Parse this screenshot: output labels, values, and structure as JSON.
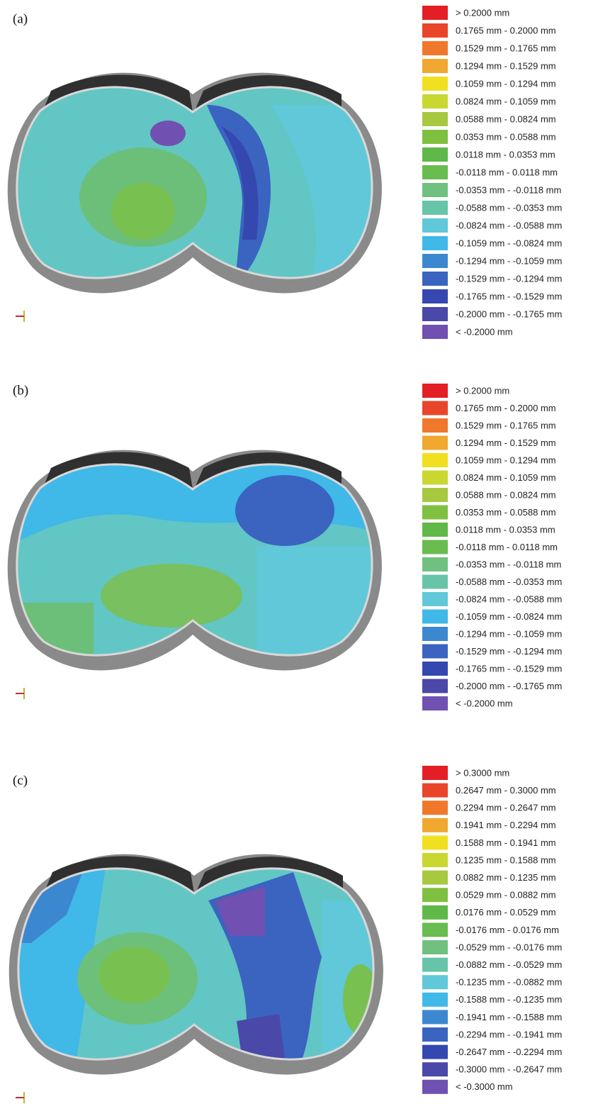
{
  "panels": [
    {
      "label": "(a)",
      "legend": [
        {
          "label": "> 0.2000 mm",
          "color": "#e31e24"
        },
        {
          "label": "0.1765 mm -  0.2000 mm",
          "color": "#e8452a"
        },
        {
          "label": "0.1529 mm -  0.1765 mm",
          "color": "#f0782a"
        },
        {
          "label": "0.1294 mm -  0.1529 mm",
          "color": "#f0a830"
        },
        {
          "label": "0.1059 mm -  0.1294 mm",
          "color": "#f0e020"
        },
        {
          "label": "0.0824 mm -  0.1059 mm",
          "color": "#c8d830"
        },
        {
          "label": "0.0588 mm -  0.0824 mm",
          "color": "#a8c840"
        },
        {
          "label": "0.0353 mm -  0.0588 mm",
          "color": "#80c040"
        },
        {
          "label": "0.0118 mm -  0.0353 mm",
          "color": "#60b848"
        },
        {
          "label": "-0.0118 mm -  0.0118 mm",
          "color": "#68bc50"
        },
        {
          "label": "-0.0353 mm - -0.0118 mm",
          "color": "#70c080"
        },
        {
          "label": "-0.0588 mm - -0.0353 mm",
          "color": "#68c4a8"
        },
        {
          "label": "-0.0824 mm - -0.0588 mm",
          "color": "#60c8d8"
        },
        {
          "label": "-0.1059 mm - -0.0824 mm",
          "color": "#40b8e8"
        },
        {
          "label": "-0.1294 mm - -0.1059 mm",
          "color": "#3c88d0"
        },
        {
          "label": "-0.1529 mm - -0.1294 mm",
          "color": "#3a64c0"
        },
        {
          "label": "-0.1765 mm - -0.1529 mm",
          "color": "#3448b0"
        },
        {
          "label": "-0.2000 mm - -0.1765 mm",
          "color": "#4a48a8"
        },
        {
          "label": "< -0.2000 mm",
          "color": "#7050b0"
        }
      ]
    },
    {
      "label": "(b)",
      "legend": [
        {
          "label": "> 0.2000 mm",
          "color": "#e31e24"
        },
        {
          "label": "0.1765 mm -  0.2000 mm",
          "color": "#e8452a"
        },
        {
          "label": "0.1529 mm -  0.1765 mm",
          "color": "#f0782a"
        },
        {
          "label": "0.1294 mm -  0.1529 mm",
          "color": "#f0a830"
        },
        {
          "label": "0.1059 mm -  0.1294 mm",
          "color": "#f0e020"
        },
        {
          "label": "0.0824 mm -  0.1059 mm",
          "color": "#c8d830"
        },
        {
          "label": "0.0588 mm -  0.0824 mm",
          "color": "#a8c840"
        },
        {
          "label": "0.0353 mm -  0.0588 mm",
          "color": "#80c040"
        },
        {
          "label": "0.0118 mm -  0.0353 mm",
          "color": "#60b848"
        },
        {
          "label": "-0.0118 mm -  0.0118 mm",
          "color": "#68bc50"
        },
        {
          "label": "-0.0353 mm - -0.0118 mm",
          "color": "#70c080"
        },
        {
          "label": "-0.0588 mm - -0.0353 mm",
          "color": "#68c4a8"
        },
        {
          "label": "-0.0824 mm - -0.0588 mm",
          "color": "#60c8d8"
        },
        {
          "label": "-0.1059 mm - -0.0824 mm",
          "color": "#40b8e8"
        },
        {
          "label": "-0.1294 mm - -0.1059 mm",
          "color": "#3c88d0"
        },
        {
          "label": "-0.1529 mm - -0.1294 mm",
          "color": "#3a64c0"
        },
        {
          "label": "-0.1765 mm - -0.1529 mm",
          "color": "#3448b0"
        },
        {
          "label": "-0.2000 mm - -0.1765 mm",
          "color": "#4a48a8"
        },
        {
          "label": "< -0.2000 mm",
          "color": "#7050b0"
        }
      ]
    },
    {
      "label": "(c)",
      "legend": [
        {
          "label": "> 0.3000 mm",
          "color": "#e31e24"
        },
        {
          "label": "0.2647 mm -  0.3000 mm",
          "color": "#e8452a"
        },
        {
          "label": "0.2294 mm -  0.2647 mm",
          "color": "#f0782a"
        },
        {
          "label": "0.1941 mm -  0.2294 mm",
          "color": "#f0a830"
        },
        {
          "label": "0.1588 mm -  0.1941 mm",
          "color": "#f0e020"
        },
        {
          "label": "0.1235 mm -  0.1588 mm",
          "color": "#c8d830"
        },
        {
          "label": "0.0882 mm -  0.1235 mm",
          "color": "#a8c840"
        },
        {
          "label": "0.0529 mm -  0.0882 mm",
          "color": "#80c040"
        },
        {
          "label": "0.0176 mm -  0.0529 mm",
          "color": "#60b848"
        },
        {
          "label": "-0.0176 mm -  0.0176 mm",
          "color": "#68bc50"
        },
        {
          "label": "-0.0529 mm - -0.0176 mm",
          "color": "#70c080"
        },
        {
          "label": "-0.0882 mm - -0.0529 mm",
          "color": "#68c4a8"
        },
        {
          "label": "-0.1235 mm - -0.0882 mm",
          "color": "#60c8d8"
        },
        {
          "label": "-0.1588 mm - -0.1235 mm",
          "color": "#40b8e8"
        },
        {
          "label": "-0.1941 mm - -0.1588 mm",
          "color": "#3c88d0"
        },
        {
          "label": "-0.2294 mm - -0.1941 mm",
          "color": "#3a64c0"
        },
        {
          "label": "-0.2647 mm - -0.2294 mm",
          "color": "#3448b0"
        },
        {
          "label": "-0.3000 mm - -0.2647 mm",
          "color": "#4a48a8"
        },
        {
          "label": "< -0.3000 mm",
          "color": "#7050b0"
        }
      ]
    }
  ]
}
